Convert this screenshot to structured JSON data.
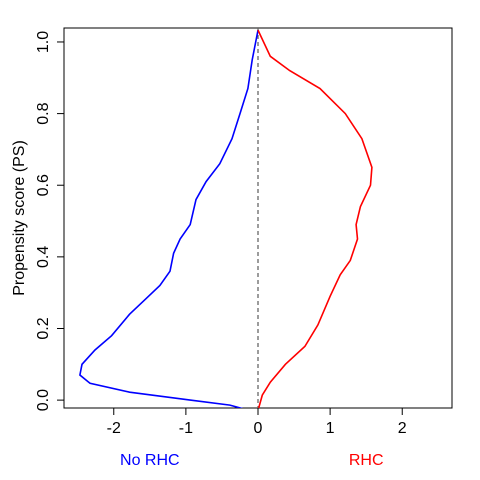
{
  "chart_data": {
    "type": "line",
    "y_label": "Propensity score (PS)",
    "xlim": [
      -2.69,
      2.69
    ],
    "ylim": [
      -0.022,
      1.039
    ],
    "xticks": [
      -2,
      -1,
      0,
      1,
      2
    ],
    "yticks": [
      {
        "value": 0,
        "label": "0.0"
      },
      0.2,
      0.4,
      0.6,
      0.8,
      {
        "value": 1,
        "label": "1.0"
      }
    ],
    "vline": 0,
    "series": [
      {
        "name": "No RHC",
        "color": "#0000ff",
        "x": [
          0,
          -0.08,
          -0.14,
          -0.25,
          -0.36,
          -0.53,
          -0.72,
          -0.86,
          -0.94,
          -1.08,
          -1.17,
          -1.22,
          -1.36,
          -1.57,
          -1.78,
          -2.03,
          -2.26,
          -2.44,
          -2.47,
          -2.33,
          -1.78,
          -0.94,
          -0.39,
          -0.19
        ],
        "values": [
          1.033,
          0.95,
          0.87,
          0.8,
          0.73,
          0.66,
          0.61,
          0.56,
          0.49,
          0.45,
          0.41,
          0.36,
          0.32,
          0.28,
          0.24,
          0.18,
          0.14,
          0.1,
          0.07,
          0.047,
          0.022,
          0,
          -0.014,
          -0.025
        ]
      },
      {
        "name": "RHC",
        "color": "#ff0000",
        "x": [
          0,
          0.17,
          0.44,
          0.86,
          1.21,
          1.44,
          1.58,
          1.56,
          1.42,
          1.36,
          1.38,
          1.28,
          1.14,
          1.0,
          0.83,
          0.65,
          0.38,
          0.17,
          0.06,
          0.01
        ],
        "values": [
          1.033,
          0.96,
          0.92,
          0.87,
          0.8,
          0.73,
          0.65,
          0.6,
          0.54,
          0.49,
          0.45,
          0.39,
          0.35,
          0.29,
          0.21,
          0.15,
          0.1,
          0.05,
          0.014,
          -0.022
        ]
      }
    ]
  }
}
